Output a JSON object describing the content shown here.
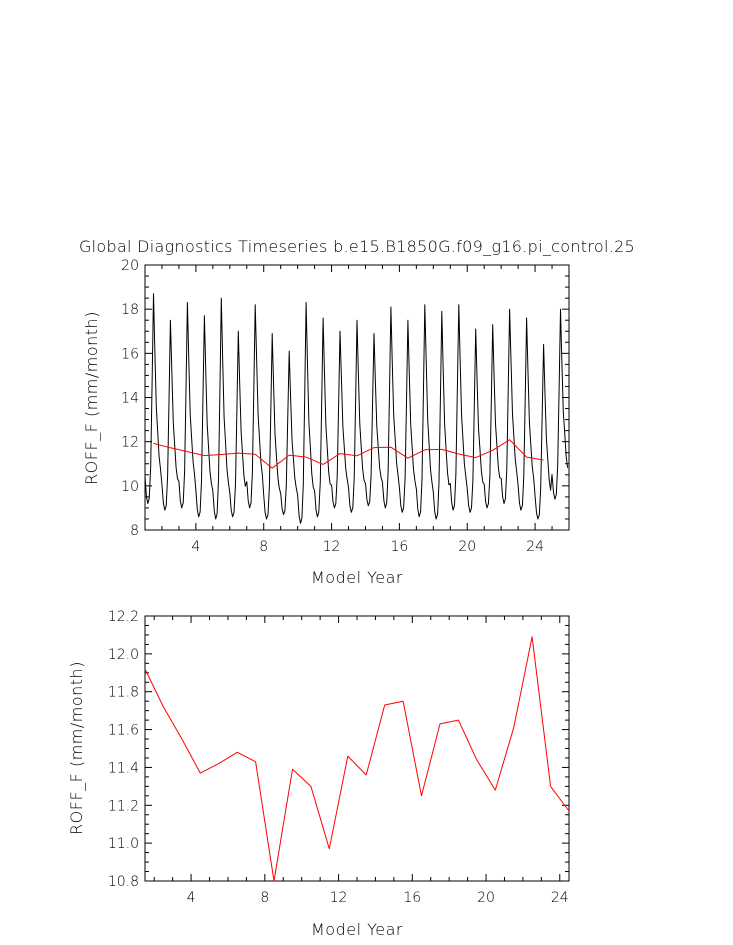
{
  "title": "Global Diagnostics Timeseries b.e15.B1850G.f09_g16.pi_control.25",
  "chart_data": [
    {
      "type": "line",
      "xlabel": "Model Year",
      "ylabel": "ROFF_F (mm/month)",
      "xlim": [
        1,
        26
      ],
      "ylim": [
        8,
        20
      ],
      "xticks": [
        4,
        8,
        12,
        16,
        20,
        24
      ],
      "xtick_labels": [
        "4",
        "8",
        "12",
        "16",
        "20",
        "24"
      ],
      "yticks": [
        8,
        10,
        12,
        14,
        16,
        18,
        20
      ],
      "ytick_labels": [
        "8",
        "10",
        "12",
        "14",
        "16",
        "18",
        "20"
      ],
      "grid": false,
      "series": [
        {
          "description": "monthly",
          "color": "#000000",
          "monthly_pattern": [
            10.2,
            9.4,
            9.1,
            9.3,
            10.6,
            14.0,
            17.6,
            15.2,
            13.0,
            12.0,
            11.0,
            10.5
          ],
          "annual_peaks": [
            18.7,
            17.5,
            18.3,
            17.7,
            18.5,
            17.0,
            18.2,
            16.9,
            16.1,
            18.3,
            17.6,
            17.0,
            17.5,
            16.9,
            18.1,
            17.5,
            18.2,
            17.9,
            18.2,
            17.1,
            17.3,
            18.0,
            17.6,
            16.4,
            18.0
          ],
          "annual_minima": [
            9.2,
            8.9,
            9.0,
            8.6,
            8.5,
            8.6,
            9.0,
            8.5,
            8.7,
            8.3,
            8.6,
            9.0,
            8.8,
            9.1,
            9.0,
            8.8,
            8.6,
            8.5,
            8.9,
            8.8,
            9.0,
            9.2,
            8.9,
            8.5,
            9.4
          ]
        },
        {
          "description": "annual mean",
          "color": "#ff0000",
          "x": [
            1.5,
            2.5,
            3.5,
            4.5,
            5.5,
            6.5,
            7.5,
            8.5,
            9.5,
            10.5,
            11.5,
            12.5,
            13.5,
            14.5,
            15.5,
            16.5,
            17.5,
            18.5,
            19.5,
            20.5,
            21.5,
            22.5,
            23.5,
            24.5
          ],
          "y": [
            11.92,
            11.72,
            11.55,
            11.37,
            11.42,
            11.48,
            11.43,
            10.8,
            11.39,
            11.3,
            10.97,
            11.46,
            11.36,
            11.73,
            11.75,
            11.25,
            11.63,
            11.65,
            11.44,
            11.28,
            11.61,
            12.09,
            11.3,
            11.17
          ]
        }
      ]
    },
    {
      "type": "line",
      "xlabel": "Model Year",
      "ylabel": "ROFF_F (mm/month)",
      "xlim": [
        1.5,
        24.5
      ],
      "ylim": [
        10.8,
        12.2
      ],
      "xticks": [
        4,
        8,
        12,
        16,
        20,
        24
      ],
      "xtick_labels": [
        "4",
        "8",
        "12",
        "16",
        "20",
        "24"
      ],
      "yticks": [
        10.8,
        11.0,
        11.2,
        11.4,
        11.6,
        11.8,
        12.0,
        12.2
      ],
      "ytick_labels": [
        "10.8",
        "11.0",
        "11.2",
        "11.4",
        "11.6",
        "11.8",
        "12.0",
        "12.2"
      ],
      "grid": false,
      "series": [
        {
          "description": "annual mean",
          "color": "#ff0000",
          "x": [
            1.5,
            2.5,
            3.5,
            4.5,
            5.5,
            6.5,
            7.5,
            8.5,
            9.5,
            10.5,
            11.5,
            12.5,
            13.5,
            14.5,
            15.5,
            16.5,
            17.5,
            18.5,
            19.5,
            20.5,
            21.5,
            22.5,
            23.5,
            24.5
          ],
          "y": [
            11.92,
            11.72,
            11.55,
            11.37,
            11.42,
            11.48,
            11.43,
            10.8,
            11.39,
            11.3,
            10.97,
            11.46,
            11.36,
            11.73,
            11.75,
            11.25,
            11.63,
            11.65,
            11.44,
            11.28,
            11.61,
            12.09,
            11.3,
            11.17
          ]
        }
      ]
    }
  ]
}
